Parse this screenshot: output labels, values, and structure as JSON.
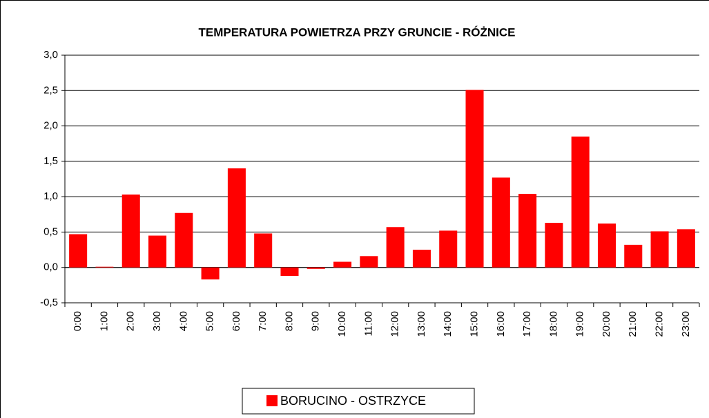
{
  "chart_data": {
    "type": "bar",
    "title": "TEMPERATURA POWIETRZA PRZY GRUNCIE - RÓŻNICE",
    "categories": [
      "0:00",
      "1:00",
      "2:00",
      "3:00",
      "4:00",
      "5:00",
      "6:00",
      "7:00",
      "8:00",
      "9:00",
      "10:00",
      "11:00",
      "12:00",
      "13:00",
      "14:00",
      "15:00",
      "16:00",
      "17:00",
      "18:00",
      "19:00",
      "20:00",
      "21:00",
      "22:00",
      "23:00"
    ],
    "series": [
      {
        "name": "BORUCINO - OSTRZYCE",
        "color": "#ff0000",
        "values": [
          0.47,
          0.01,
          1.03,
          0.45,
          0.77,
          -0.17,
          1.4,
          0.48,
          -0.12,
          -0.02,
          0.08,
          0.16,
          0.57,
          0.25,
          0.52,
          2.51,
          1.27,
          1.04,
          0.63,
          1.85,
          0.62,
          0.32,
          0.51,
          0.54
        ]
      }
    ],
    "ylim": [
      -0.5,
      3
    ],
    "yticks": [
      {
        "value": -0.5,
        "label": "-0,5"
      },
      {
        "value": 0,
        "label": "0,0"
      },
      {
        "value": 0.5,
        "label": "0,5"
      },
      {
        "value": 1,
        "label": "1,0"
      },
      {
        "value": 1.5,
        "label": "1,5"
      },
      {
        "value": 2,
        "label": "2,0"
      },
      {
        "value": 2.5,
        "label": "2,5"
      },
      {
        "value": 3,
        "label": "3,0"
      }
    ],
    "grid": true,
    "legend": "bottom"
  }
}
